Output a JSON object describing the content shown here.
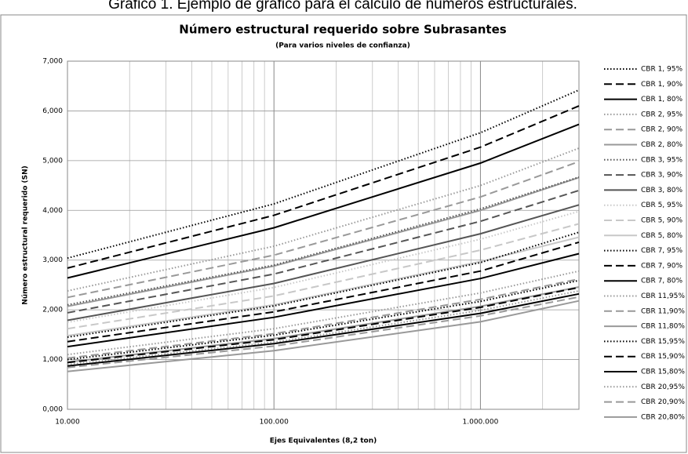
{
  "caption": "Gráfico 1. Ejemplo de gráfico para el cálculo de números estructurales.",
  "chart_data": {
    "type": "line",
    "title": "Número estructural requerido sobre Subrasantes",
    "subtitle": "(Para varios niveles de confianza)",
    "xlabel": "Ejes Equivalentes (8,2 ton)",
    "ylabel": "Número estructural requerido (SN)",
    "xscale": "log",
    "grid": true,
    "legend": "right",
    "x": [
      10000,
      100000,
      1000000,
      3000000
    ],
    "xlim": [
      10000,
      3000000
    ],
    "xticks": [
      {
        "value": 10000,
        "label": "10.000"
      },
      {
        "value": 100000,
        "label": "100.000"
      },
      {
        "value": 1000000,
        "label": "1.000.000"
      }
    ],
    "xminorticks": [
      20000,
      30000,
      40000,
      50000,
      60000,
      70000,
      80000,
      90000,
      200000,
      300000,
      400000,
      500000,
      600000,
      700000,
      800000,
      900000,
      2000000,
      3000000
    ],
    "ylim": [
      0,
      7000
    ],
    "yticks": [
      {
        "value": 0,
        "label": "0,000"
      },
      {
        "value": 1000,
        "label": "1,000"
      },
      {
        "value": 2000,
        "label": "2,000"
      },
      {
        "value": 3000,
        "label": "3,000"
      },
      {
        "value": 4000,
        "label": "4,000"
      },
      {
        "value": 5000,
        "label": "5,000"
      },
      {
        "value": 6000,
        "label": "6,000"
      },
      {
        "value": 7000,
        "label": "7,000"
      }
    ],
    "series": [
      {
        "name": "CBR 1, 95%",
        "color": "#000000",
        "dash": "dotted",
        "values": [
          3040,
          4130,
          5560,
          6420
        ]
      },
      {
        "name": "CBR 1, 90%",
        "color": "#000000",
        "dash": "dashed",
        "values": [
          2840,
          3900,
          5270,
          6100
        ]
      },
      {
        "name": "CBR 1, 80%",
        "color": "#000000",
        "dash": "solid",
        "values": [
          2640,
          3650,
          4950,
          5730
        ]
      },
      {
        "name": "CBR 2, 95%",
        "color": "#999999",
        "dash": "dotted",
        "values": [
          2380,
          3280,
          4500,
          5250
        ]
      },
      {
        "name": "CBR 2, 90%",
        "color": "#999999",
        "dash": "dashed",
        "values": [
          2250,
          3100,
          4270,
          4980
        ]
      },
      {
        "name": "CBR 2, 80%",
        "color": "#999999",
        "dash": "solid",
        "values": [
          2070,
          2880,
          4000,
          4660
        ]
      },
      {
        "name": "CBR 3, 95%",
        "color": "#555555",
        "dash": "dotted",
        "values": [
          2100,
          2900,
          4030,
          4670
        ]
      },
      {
        "name": "CBR 3, 90%",
        "color": "#555555",
        "dash": "dashed",
        "values": [
          1940,
          2720,
          3780,
          4400
        ]
      },
      {
        "name": "CBR 3, 80%",
        "color": "#555555",
        "dash": "solid",
        "values": [
          1790,
          2530,
          3530,
          4110
        ]
      },
      {
        "name": "CBR 5, 95%",
        "color": "#c8c8c8",
        "dash": "dotted",
        "values": [
          1750,
          2450,
          3420,
          3980
        ]
      },
      {
        "name": "CBR 5, 90%",
        "color": "#c8c8c8",
        "dash": "dashed",
        "values": [
          1620,
          2280,
          3200,
          3730
        ]
      },
      {
        "name": "CBR 5, 80%",
        "color": "#c8c8c8",
        "dash": "solid",
        "values": [
          1480,
          2100,
          2970,
          3460
        ]
      },
      {
        "name": "CBR 7, 95%",
        "color": "#000000",
        "dash": "dotted",
        "values": [
          1450,
          2080,
          2950,
          3560
        ]
      },
      {
        "name": "CBR 7, 90%",
        "color": "#000000",
        "dash": "dashed",
        "values": [
          1360,
          1960,
          2780,
          3360
        ]
      },
      {
        "name": "CBR 7, 80%",
        "color": "#000000",
        "dash": "solid",
        "values": [
          1260,
          1850,
          2630,
          3130
        ]
      },
      {
        "name": "CBR 11,95%",
        "color": "#999999",
        "dash": "dotted",
        "values": [
          1100,
          1620,
          2340,
          2780
        ]
      },
      {
        "name": "CBR 11,90%",
        "color": "#999999",
        "dash": "dashed",
        "values": [
          1030,
          1520,
          2210,
          2620
        ]
      },
      {
        "name": "CBR 11,80%",
        "color": "#999999",
        "dash": "solid",
        "values": [
          950,
          1420,
          2070,
          2460
        ]
      },
      {
        "name": "CBR 15,95%",
        "color": "#000000",
        "dash": "dotted",
        "values": [
          1000,
          1490,
          2170,
          2590
        ]
      },
      {
        "name": "CBR 15,90%",
        "color": "#000000",
        "dash": "dashed",
        "values": [
          940,
          1400,
          2050,
          2450
        ]
      },
      {
        "name": "CBR 15,80%",
        "color": "#000000",
        "dash": "solid",
        "values": [
          870,
          1320,
          1930,
          2320
        ]
      },
      {
        "name": "CBR 20,95%",
        "color": "#999999",
        "dash": "dotted",
        "values": [
          900,
          1350,
          1990,
          2380
        ]
      },
      {
        "name": "CBR 20,90%",
        "color": "#999999",
        "dash": "dashed",
        "values": [
          840,
          1270,
          1880,
          2260
        ]
      },
      {
        "name": "CBR 20,80%",
        "color": "#999999",
        "dash": "solid",
        "values": [
          760,
          1180,
          1760,
          2180
        ]
      }
    ]
  }
}
